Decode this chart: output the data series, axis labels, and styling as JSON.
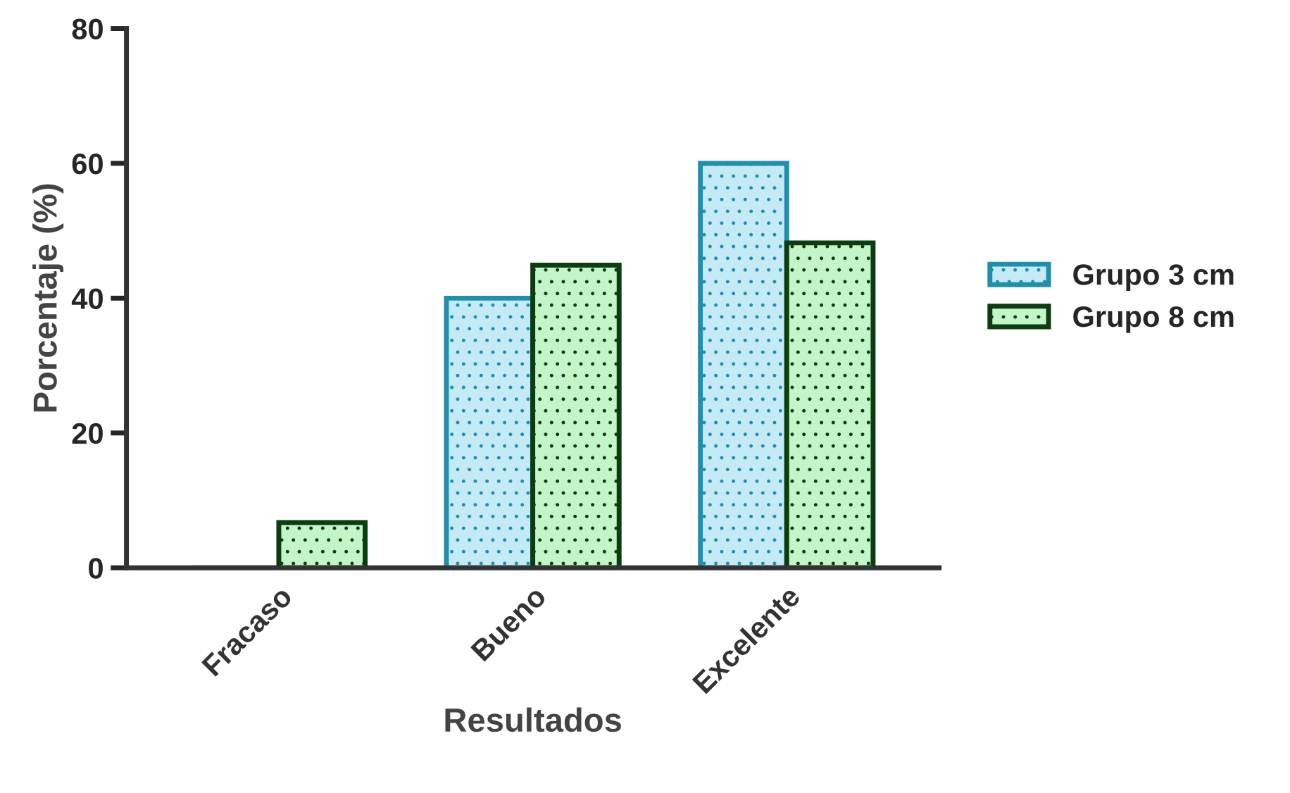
{
  "chart_data": {
    "type": "bar",
    "xlabel": "Resultados",
    "ylabel": "Porcentaje (%)",
    "categories": [
      "Fracaso",
      "Bueno",
      "Excelente"
    ],
    "series": [
      {
        "name": "Grupo 3 cm",
        "color": "#1f8fae",
        "values": [
          0,
          40,
          60
        ]
      },
      {
        "name": "Grupo 8 cm",
        "color": "#0b3d10",
        "values": [
          6.7,
          44.9,
          48.2
        ]
      }
    ],
    "ylim": [
      0,
      80
    ],
    "yticks": [
      0,
      20,
      40,
      60,
      80
    ],
    "grid": false,
    "legend": "right"
  }
}
